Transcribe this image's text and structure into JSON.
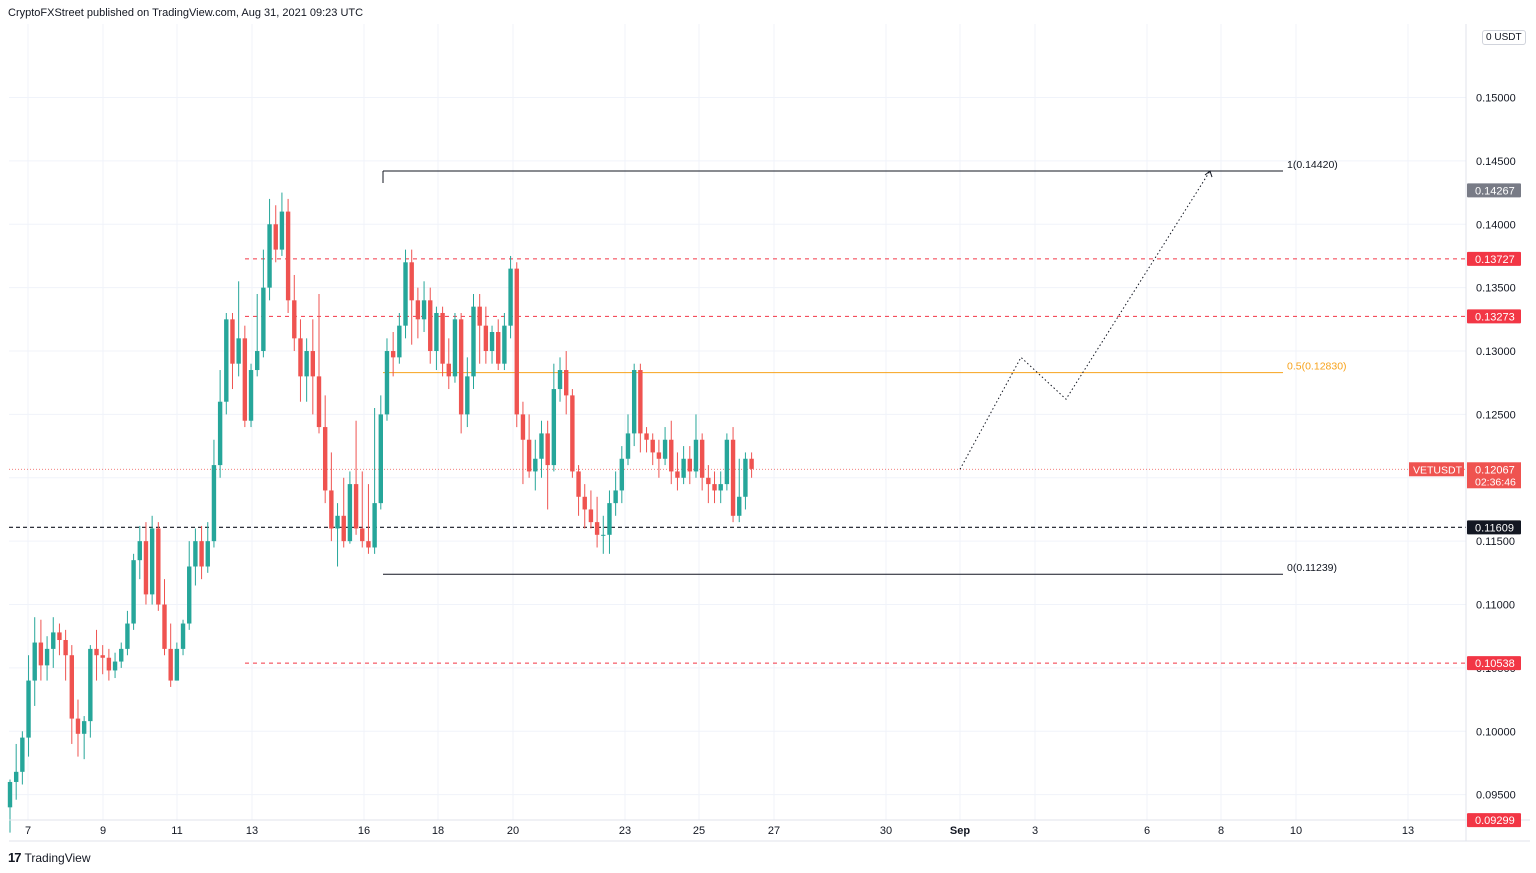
{
  "header": {
    "publisher": "CryptoFXStreet published on TradingView.com, Aug 31, 2021 09:23 UTC"
  },
  "footer": {
    "brand": "TradingView",
    "logo_mark": "17"
  },
  "axis": {
    "unit": "USDT",
    "top_tick": "0"
  },
  "colors": {
    "up": "#26a69a",
    "down": "#ef5350",
    "level": "#f23645",
    "fib": "#f7a21b",
    "support": "#131722",
    "grid": "#f0f3fa"
  },
  "chart_data": {
    "type": "candlestick",
    "symbol": "VETUSDT",
    "countdown": "02:36:46",
    "current_price": 0.12067,
    "price_labels": [
      {
        "value": 0.14267,
        "text": "0.14267",
        "style": "gray"
      },
      {
        "value": 0.13727,
        "text": "0.13727",
        "style": "red"
      },
      {
        "value": 0.13273,
        "text": "0.13273",
        "style": "red"
      },
      {
        "value": 0.11609,
        "text": "0.11609",
        "style": "black"
      },
      {
        "value": 0.10538,
        "text": "0.10538",
        "style": "red"
      },
      {
        "value": 0.09299,
        "text": "0.09299",
        "style": "red"
      }
    ],
    "y_ticks": [
      "0.15000",
      "0.14500",
      "0.14000",
      "0.13500",
      "0.13000",
      "0.12500",
      "0.12000",
      "0.11500",
      "0.11000",
      "0.10500",
      "0.10000",
      "0.09500"
    ],
    "y_range": [
      0.093,
      0.1558
    ],
    "x_ticks": [
      {
        "label": "7",
        "bold": false
      },
      {
        "label": "9",
        "bold": false
      },
      {
        "label": "11",
        "bold": false
      },
      {
        "label": "13",
        "bold": false
      },
      {
        "label": "16",
        "bold": false
      },
      {
        "label": "18",
        "bold": false
      },
      {
        "label": "20",
        "bold": false
      },
      {
        "label": "23",
        "bold": false
      },
      {
        "label": "25",
        "bold": false
      },
      {
        "label": "27",
        "bold": false
      },
      {
        "label": "30",
        "bold": false
      },
      {
        "label": "Sep",
        "bold": true
      },
      {
        "label": "3",
        "bold": false
      },
      {
        "label": "6",
        "bold": false
      },
      {
        "label": "8",
        "bold": false
      },
      {
        "label": "10",
        "bold": false
      },
      {
        "label": "13",
        "bold": false
      }
    ],
    "fib": [
      {
        "level": "1",
        "value": 0.1442,
        "text": "1(0.14420)"
      },
      {
        "level": "0.5",
        "value": 0.1283,
        "text": "0.5(0.12830)"
      },
      {
        "level": "0",
        "value": 0.11239,
        "text": "0(0.11239)"
      }
    ],
    "levels": [
      0.13727,
      0.13273,
      0.10538
    ],
    "support": 0.11609,
    "projection": [
      0.12067,
      0.1295,
      0.1262,
      0.1442
    ],
    "candles": [
      [
        0.094,
        0.096,
        0.092,
        0.0962
      ],
      [
        0.096,
        0.0968,
        0.0946,
        0.099
      ],
      [
        0.0968,
        0.0995,
        0.0958,
        0.1
      ],
      [
        0.0995,
        0.104,
        0.098,
        0.106
      ],
      [
        0.104,
        0.107,
        0.102,
        0.109
      ],
      [
        0.107,
        0.1052,
        0.104,
        0.1088
      ],
      [
        0.1052,
        0.1065,
        0.104,
        0.1075
      ],
      [
        0.1065,
        0.1078,
        0.105,
        0.109
      ],
      [
        0.1078,
        0.1072,
        0.106,
        0.1085
      ],
      [
        0.1072,
        0.106,
        0.104,
        0.108
      ],
      [
        0.106,
        0.101,
        0.099,
        0.1068
      ],
      [
        0.101,
        0.0998,
        0.098,
        0.1025
      ],
      [
        0.0998,
        0.1008,
        0.0978,
        0.1012
      ],
      [
        0.1008,
        0.1065,
        0.0995,
        0.1068
      ],
      [
        0.1065,
        0.106,
        0.104,
        0.108
      ],
      [
        0.106,
        0.1058,
        0.1045,
        0.1068
      ],
      [
        0.1058,
        0.1048,
        0.104,
        0.1065
      ],
      [
        0.1048,
        0.1055,
        0.1042,
        0.1062
      ],
      [
        0.1055,
        0.1065,
        0.105,
        0.107
      ],
      [
        0.1065,
        0.1085,
        0.106,
        0.1095
      ],
      [
        0.1085,
        0.1135,
        0.108,
        0.114
      ],
      [
        0.1135,
        0.115,
        0.112,
        0.1162
      ],
      [
        0.115,
        0.1108,
        0.11,
        0.1165
      ],
      [
        0.1108,
        0.116,
        0.11,
        0.117
      ],
      [
        0.116,
        0.11,
        0.1095,
        0.1165
      ],
      [
        0.11,
        0.1065,
        0.106,
        0.112
      ],
      [
        0.1065,
        0.104,
        0.1035,
        0.1085
      ],
      [
        0.104,
        0.1065,
        0.104,
        0.107
      ],
      [
        0.1065,
        0.1085,
        0.106,
        0.1088
      ],
      [
        0.1085,
        0.113,
        0.108,
        0.115
      ],
      [
        0.113,
        0.115,
        0.1115,
        0.116
      ],
      [
        0.115,
        0.113,
        0.112,
        0.1162
      ],
      [
        0.113,
        0.115,
        0.1125,
        0.1165
      ],
      [
        0.115,
        0.121,
        0.1145,
        0.123
      ],
      [
        0.121,
        0.126,
        0.12,
        0.1285
      ],
      [
        0.126,
        0.1325,
        0.125,
        0.133
      ],
      [
        0.1325,
        0.129,
        0.127,
        0.133
      ],
      [
        0.129,
        0.131,
        0.128,
        0.1355
      ],
      [
        0.131,
        0.1245,
        0.124,
        0.132
      ],
      [
        0.1245,
        0.1285,
        0.124,
        0.129
      ],
      [
        0.1285,
        0.13,
        0.128,
        0.1345
      ],
      [
        0.13,
        0.135,
        0.1295,
        0.138
      ],
      [
        0.135,
        0.14,
        0.134,
        0.142
      ],
      [
        0.14,
        0.138,
        0.137,
        0.1415
      ],
      [
        0.138,
        0.141,
        0.1375,
        0.1425
      ],
      [
        0.141,
        0.134,
        0.133,
        0.142
      ],
      [
        0.134,
        0.131,
        0.13,
        0.136
      ],
      [
        0.131,
        0.128,
        0.126,
        0.1325
      ],
      [
        0.128,
        0.13,
        0.126,
        0.131
      ],
      [
        0.13,
        0.128,
        0.125,
        0.1325
      ],
      [
        0.128,
        0.124,
        0.1235,
        0.1345
      ],
      [
        0.124,
        0.119,
        0.118,
        0.1265
      ],
      [
        0.119,
        0.116,
        0.115,
        0.122
      ],
      [
        0.116,
        0.117,
        0.113,
        0.118
      ],
      [
        0.117,
        0.115,
        0.1145,
        0.12
      ],
      [
        0.115,
        0.1195,
        0.1148,
        0.1205
      ],
      [
        0.1195,
        0.116,
        0.1155,
        0.1245
      ],
      [
        0.116,
        0.115,
        0.1145,
        0.1205
      ],
      [
        0.115,
        0.1145,
        0.114,
        0.1195
      ],
      [
        0.1145,
        0.118,
        0.114,
        0.1255
      ],
      [
        0.118,
        0.125,
        0.1175,
        0.1265
      ],
      [
        0.125,
        0.13,
        0.1245,
        0.131
      ],
      [
        0.13,
        0.1295,
        0.128,
        0.1315
      ],
      [
        0.1295,
        0.132,
        0.129,
        0.133
      ],
      [
        0.132,
        0.137,
        0.131,
        0.138
      ],
      [
        0.137,
        0.134,
        0.1305,
        0.138
      ],
      [
        0.134,
        0.1325,
        0.131,
        0.135
      ],
      [
        0.1325,
        0.134,
        0.1315,
        0.1355
      ],
      [
        0.134,
        0.13,
        0.129,
        0.135
      ],
      [
        0.13,
        0.133,
        0.1285,
        0.1335
      ],
      [
        0.133,
        0.129,
        0.128,
        0.1335
      ],
      [
        0.129,
        0.128,
        0.127,
        0.131
      ],
      [
        0.128,
        0.1325,
        0.1275,
        0.133
      ],
      [
        0.1325,
        0.125,
        0.1235,
        0.133
      ],
      [
        0.125,
        0.128,
        0.124,
        0.1295
      ],
      [
        0.128,
        0.1335,
        0.127,
        0.1345
      ],
      [
        0.1335,
        0.132,
        0.129,
        0.1345
      ],
      [
        0.132,
        0.13,
        0.129,
        0.1335
      ],
      [
        0.13,
        0.1315,
        0.129,
        0.132
      ],
      [
        0.1315,
        0.129,
        0.1285,
        0.1325
      ],
      [
        0.129,
        0.132,
        0.1285,
        0.133
      ],
      [
        0.132,
        0.1365,
        0.131,
        0.1375
      ],
      [
        0.1365,
        0.125,
        0.124,
        0.137
      ],
      [
        0.125,
        0.123,
        0.1195,
        0.126
      ],
      [
        0.123,
        0.1205,
        0.12,
        0.125
      ],
      [
        0.1205,
        0.1215,
        0.119,
        0.123
      ],
      [
        0.1215,
        0.1235,
        0.12,
        0.1245
      ],
      [
        0.1235,
        0.121,
        0.1175,
        0.1245
      ],
      [
        0.121,
        0.127,
        0.1205,
        0.129
      ],
      [
        0.127,
        0.1285,
        0.126,
        0.1295
      ],
      [
        0.1285,
        0.1265,
        0.125,
        0.13
      ],
      [
        0.1265,
        0.1205,
        0.12,
        0.127
      ],
      [
        0.1205,
        0.1185,
        0.117,
        0.121
      ],
      [
        0.1185,
        0.1175,
        0.116,
        0.1195
      ],
      [
        0.1175,
        0.1165,
        0.116,
        0.119
      ],
      [
        0.1165,
        0.1155,
        0.1145,
        0.1185
      ],
      [
        0.1155,
        0.1155,
        0.114,
        0.117
      ],
      [
        0.1155,
        0.118,
        0.114,
        0.119
      ],
      [
        0.118,
        0.119,
        0.117,
        0.1205
      ],
      [
        0.119,
        0.1215,
        0.118,
        0.1225
      ],
      [
        0.1215,
        0.1235,
        0.121,
        0.125
      ],
      [
        0.1235,
        0.1285,
        0.1225,
        0.129
      ],
      [
        0.1285,
        0.1235,
        0.122,
        0.129
      ],
      [
        0.1235,
        0.123,
        0.122,
        0.124
      ],
      [
        0.123,
        0.122,
        0.121,
        0.1235
      ],
      [
        0.122,
        0.1215,
        0.12,
        0.123
      ],
      [
        0.1215,
        0.123,
        0.121,
        0.124
      ],
      [
        0.123,
        0.1205,
        0.1195,
        0.1245
      ],
      [
        0.1205,
        0.12,
        0.119,
        0.122
      ],
      [
        0.12,
        0.1215,
        0.1195,
        0.1225
      ],
      [
        0.1215,
        0.1205,
        0.1195,
        0.1225
      ],
      [
        0.1205,
        0.123,
        0.12,
        0.125
      ],
      [
        0.123,
        0.12,
        0.119,
        0.1235
      ],
      [
        0.12,
        0.1195,
        0.118,
        0.121
      ],
      [
        0.1195,
        0.119,
        0.118,
        0.1205
      ],
      [
        0.119,
        0.1195,
        0.118,
        0.1205
      ],
      [
        0.1195,
        0.123,
        0.119,
        0.1235
      ],
      [
        0.123,
        0.117,
        0.1165,
        0.124
      ],
      [
        0.117,
        0.1185,
        0.1165,
        0.1215
      ],
      [
        0.1185,
        0.1215,
        0.1175,
        0.122
      ],
      [
        0.1215,
        0.1207,
        0.12,
        0.122
      ]
    ]
  }
}
